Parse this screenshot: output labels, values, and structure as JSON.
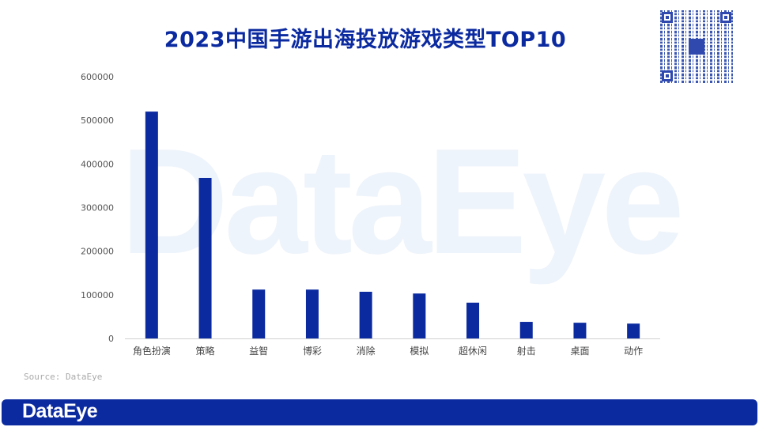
{
  "title": "2023中国手游出海投放游戏类型TOP10",
  "watermark": "DataEye",
  "source": "Source: DataEye",
  "footer_logo": "DataEye",
  "qr_logo": "DataEye",
  "colors": {
    "bar": "#0b2aa0",
    "title": "#0b2aa0",
    "footer": "#0b2aa0"
  },
  "chart_data": {
    "type": "bar",
    "title": "2023中国手游出海投放游戏类型TOP10",
    "categories": [
      "角色扮演",
      "策略",
      "益智",
      "博彩",
      "消除",
      "模拟",
      "超休闲",
      "射击",
      "桌面",
      "动作"
    ],
    "values": [
      520000,
      368000,
      112000,
      112000,
      107000,
      103000,
      82000,
      38000,
      36000,
      34000
    ],
    "ylim": [
      0,
      600000
    ],
    "yticks": [
      "0",
      "100000",
      "200000",
      "300000",
      "400000",
      "500000",
      "600000"
    ],
    "grid": false,
    "xlabel": "",
    "ylabel": ""
  }
}
